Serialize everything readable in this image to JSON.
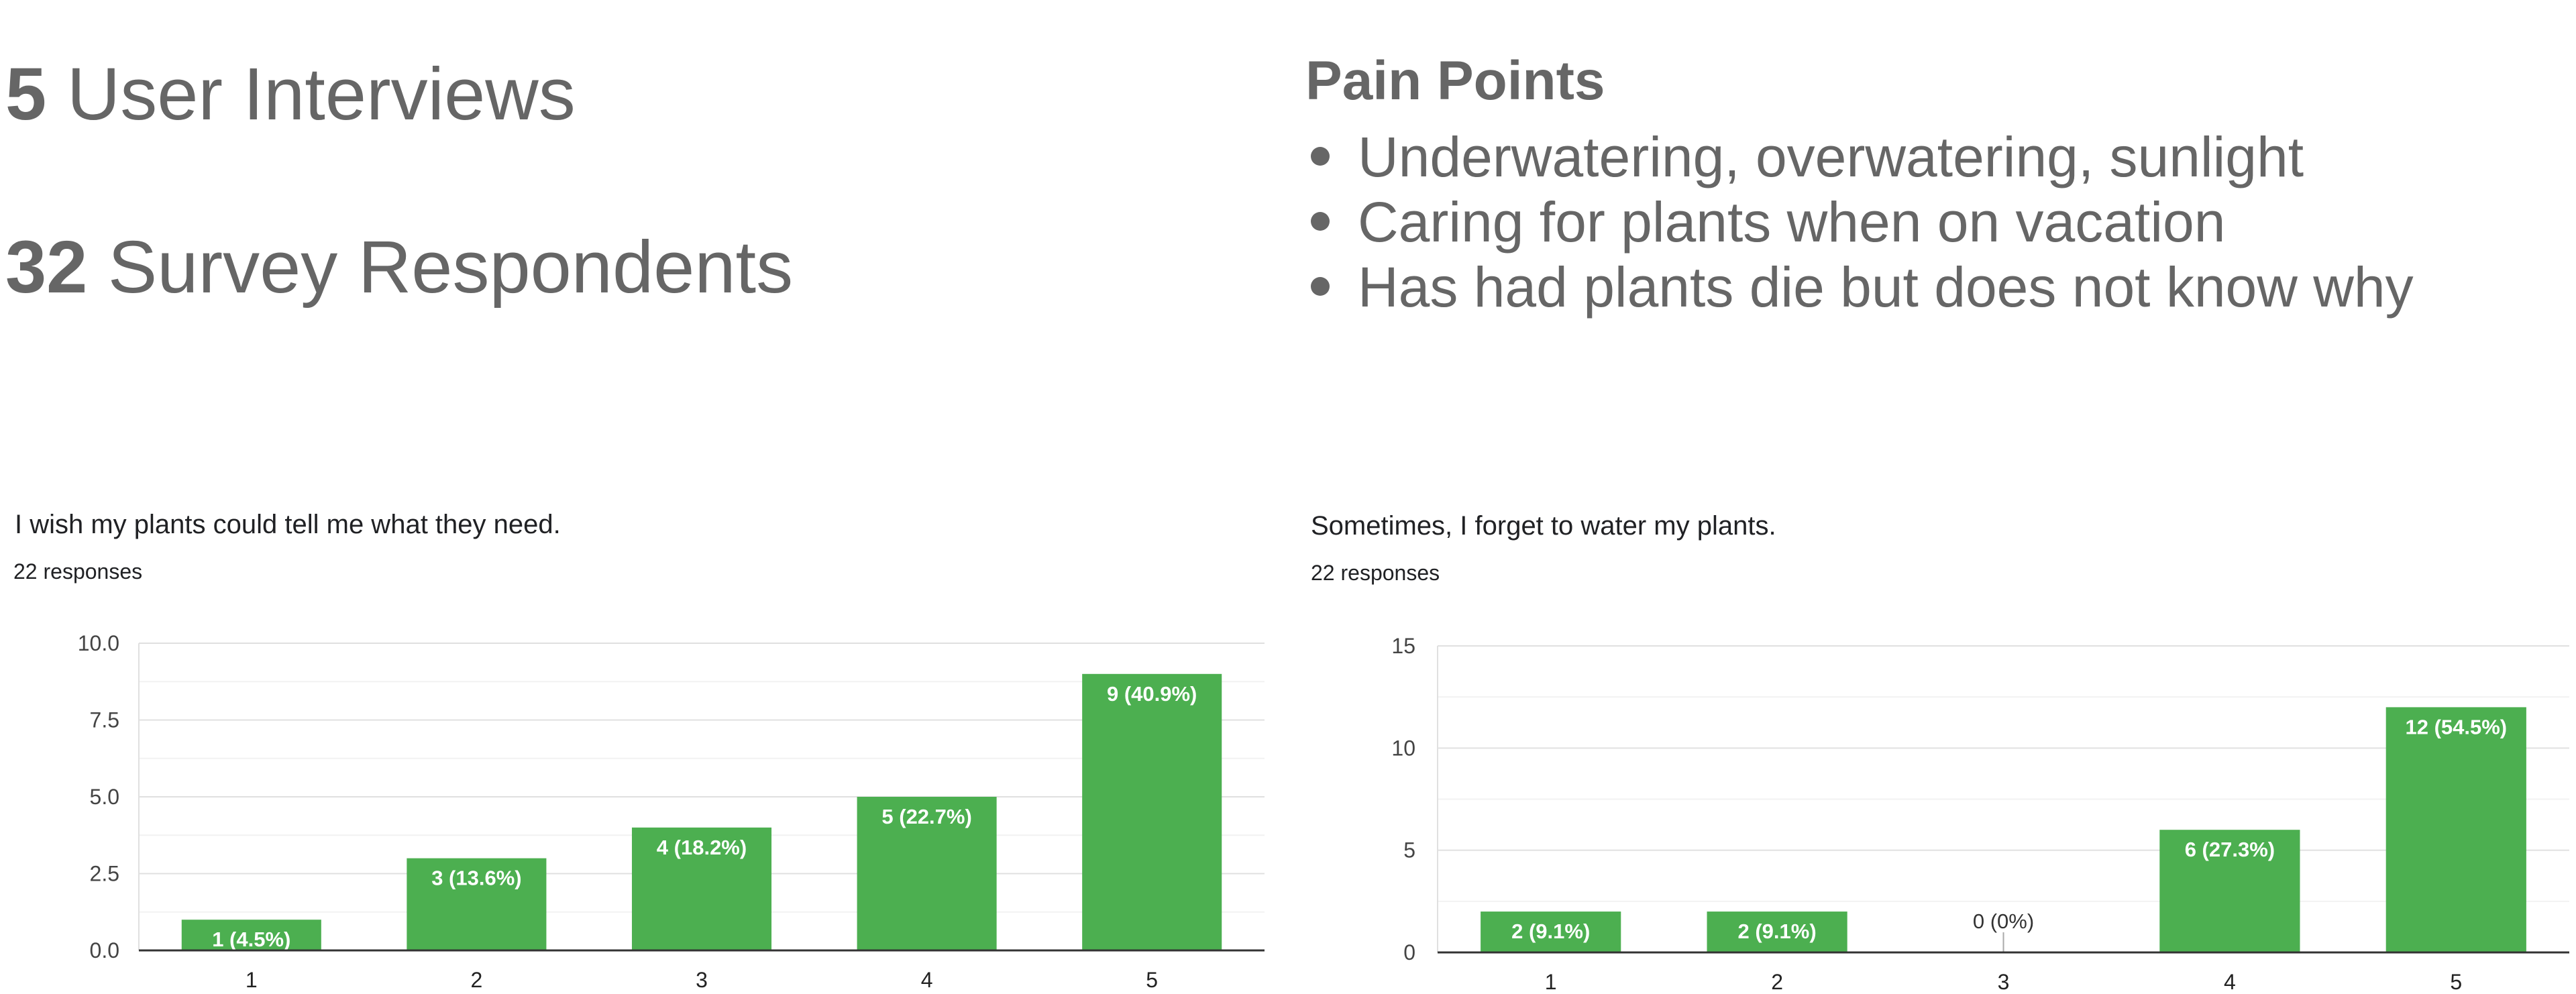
{
  "stats": [
    {
      "number": "5",
      "label": "User Interviews"
    },
    {
      "number": "32",
      "label": "Survey Respondents"
    }
  ],
  "pain_points": {
    "title": "Pain Points",
    "items": [
      "Underwatering, overwatering, sunlight",
      "Caring for plants when on vacation",
      "Has had plants die but does not know why"
    ]
  },
  "colors": {
    "bar": "#4caf50",
    "text": "#666666",
    "grid": "#e8e8e8",
    "axis": "#333333"
  },
  "chart_data": [
    {
      "type": "bar",
      "title": "I wish my plants could tell me what they need.",
      "subtitle": "22 responses",
      "categories": [
        "1",
        "2",
        "3",
        "4",
        "5"
      ],
      "values": [
        1,
        3,
        4,
        5,
        9
      ],
      "data_labels": [
        "1 (4.5%)",
        "3 (13.6%)",
        "4 (18.2%)",
        "5 (22.7%)",
        "9 (40.9%)"
      ],
      "yticks": [
        "0.0",
        "2.5",
        "5.0",
        "7.5",
        "10.0"
      ],
      "ylim": [
        0,
        10
      ],
      "grid": true
    },
    {
      "type": "bar",
      "title": "Sometimes, I forget to water my plants.",
      "subtitle": "22 responses",
      "categories": [
        "1",
        "2",
        "3",
        "4",
        "5"
      ],
      "values": [
        2,
        2,
        0,
        6,
        12
      ],
      "data_labels": [
        "2 (9.1%)",
        "2 (9.1%)",
        "0 (0%)",
        "6 (27.3%)",
        "12 (54.5%)"
      ],
      "yticks": [
        "0",
        "5",
        "10",
        "15"
      ],
      "ylim": [
        0,
        15
      ],
      "grid": true
    }
  ]
}
